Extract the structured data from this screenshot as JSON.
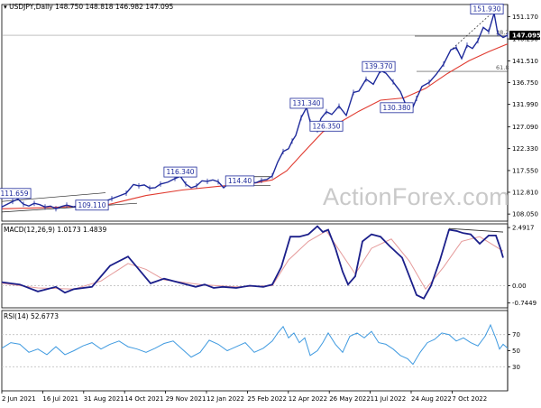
{
  "price_header": {
    "symbol": "USDJPY,Daily",
    "ohlc": "148.750 148.818 146.982 147.095",
    "dropdown_icon": "triangle-down-icon"
  },
  "macd_header": {
    "label": "MACD(12,26,9) 1.0173 1.4839"
  },
  "rsi_header": {
    "label": "RSI(14) 52.6773"
  },
  "watermark": "ActionForex.com",
  "colors": {
    "price_line": "#1e2a9b",
    "ma_line": "#e03a2f",
    "macd_line": "#1b1f8a",
    "signal_line": "#e59a9a",
    "rsi_line": "#3f9ae0",
    "label_border": "#1e2a9b",
    "current_price_bg": "#000000"
  },
  "chart_data": [
    {
      "type": "line",
      "panel": "price",
      "title": "USDJPY,Daily",
      "x": [
        "2 Jun 2021",
        "16 Jul 2021",
        "31 Aug 2021",
        "14 Oct 2021",
        "29 Nov 2021",
        "12 Jan 2022",
        "25 Feb 2022",
        "12 Apr 2022",
        "26 May 2022",
        "11 Jul 2022",
        "24 Aug 2022",
        "7 Oct 2022"
      ],
      "ylim": [
        106.5,
        153.8
      ],
      "yticks": [
        "151.170",
        "146.290",
        "141.510",
        "136.750",
        "131.990",
        "127.090",
        "122.330",
        "117.550",
        "112.810",
        "108.050"
      ],
      "series": [
        {
          "key": "price",
          "points": [
            [
              0,
              109.6
            ],
            [
              6,
              110.2
            ],
            [
              12,
              110.8
            ],
            [
              18,
              111.3
            ],
            [
              24,
              110.2
            ],
            [
              30,
              109.8
            ],
            [
              36,
              110.4
            ],
            [
              42,
              110.1
            ],
            [
              48,
              109.6
            ],
            [
              54,
              109.8
            ],
            [
              60,
              109.2
            ],
            [
              66,
              109.7
            ],
            [
              72,
              110.0
            ],
            [
              80,
              109.6
            ],
            [
              88,
              110.3
            ],
            [
              96,
              109.8
            ],
            [
              106,
              110.2
            ],
            [
              114,
              110.8
            ],
            [
              122,
              111.4
            ],
            [
              130,
              112.0
            ],
            [
              138,
              112.6
            ],
            [
              146,
              114.5
            ],
            [
              152,
              114.2
            ],
            [
              158,
              114.4
            ],
            [
              164,
              113.7
            ],
            [
              170,
              113.8
            ],
            [
              176,
              114.6
            ],
            [
              184,
              115.0
            ],
            [
              192,
              115.8
            ],
            [
              198,
              116.3
            ],
            [
              204,
              114.6
            ],
            [
              210,
              113.8
            ],
            [
              216,
              114.2
            ],
            [
              222,
              115.3
            ],
            [
              228,
              115.2
            ],
            [
              234,
              115.5
            ],
            [
              240,
              115.1
            ],
            [
              246,
              113.8
            ],
            [
              252,
              114.8
            ],
            [
              258,
              115.6
            ],
            [
              264,
              114.9
            ],
            [
              270,
              115.2
            ],
            [
              276,
              115.0
            ],
            [
              282,
              114.9
            ],
            [
              288,
              115.4
            ],
            [
              294,
              115.6
            ],
            [
              300,
              116.4
            ],
            [
              306,
              119.4
            ],
            [
              312,
              121.7
            ],
            [
              318,
              122.3
            ],
            [
              322,
              124.0
            ],
            [
              326,
              125.2
            ],
            [
              332,
              129.1
            ],
            [
              338,
              131.3
            ],
            [
              342,
              128.2
            ],
            [
              346,
              127.6
            ],
            [
              350,
              126.4
            ],
            [
              354,
              128.9
            ],
            [
              360,
              130.4
            ],
            [
              366,
              129.8
            ],
            [
              374,
              131.6
            ],
            [
              382,
              129.6
            ],
            [
              390,
              134.6
            ],
            [
              396,
              134.9
            ],
            [
              404,
              137.5
            ],
            [
              412,
              136.4
            ],
            [
              420,
              139.4
            ],
            [
              426,
              138.8
            ],
            [
              434,
              136.9
            ],
            [
              442,
              134.8
            ],
            [
              450,
              131.0
            ],
            [
              454,
              130.4
            ],
            [
              460,
              133.3
            ],
            [
              466,
              135.9
            ],
            [
              474,
              136.8
            ],
            [
              482,
              138.6
            ],
            [
              490,
              140.8
            ],
            [
              498,
              143.9
            ],
            [
              504,
              144.4
            ],
            [
              510,
              142.0
            ],
            [
              516,
              144.9
            ],
            [
              522,
              144.2
            ],
            [
              528,
              145.9
            ],
            [
              534,
              148.8
            ],
            [
              540,
              147.9
            ],
            [
              546,
              151.9
            ],
            [
              550,
              147.5
            ],
            [
              556,
              146.6
            ],
            [
              561,
              147.1
            ]
          ]
        },
        {
          "key": "ma",
          "points": [
            [
              0,
              109.2
            ],
            [
              40,
              109.4
            ],
            [
              80,
              109.7
            ],
            [
              120,
              110.2
            ],
            [
              160,
              112.1
            ],
            [
              200,
              113.3
            ],
            [
              240,
              114.1
            ],
            [
              280,
              114.8
            ],
            [
              300,
              115.5
            ],
            [
              316,
              117.5
            ],
            [
              336,
              121.8
            ],
            [
              356,
              126.0
            ],
            [
              376,
              128.2
            ],
            [
              396,
              130.5
            ],
            [
              420,
              132.9
            ],
            [
              446,
              133.4
            ],
            [
              470,
              135.5
            ],
            [
              494,
              138.7
            ],
            [
              518,
              141.5
            ],
            [
              540,
              143.5
            ],
            [
              561,
              145.2
            ]
          ]
        }
      ],
      "annotations": [
        {
          "label": "151.930",
          "value": 151.93
        },
        {
          "label": "139.370",
          "value": 139.37
        },
        {
          "label": "131.340",
          "value": 131.34
        },
        {
          "label": "126.350",
          "value": 126.35
        },
        {
          "label": "130.380",
          "value": 130.38
        },
        {
          "label": "116.340",
          "value": 116.34
        },
        {
          "label": "114.40",
          "value": 114.4
        },
        {
          "label": "111.659",
          "value": 111.659
        },
        {
          "label": "109.110",
          "value": 109.11
        }
      ],
      "fib_labels": [
        "38.2",
        "61.8"
      ],
      "current_price": "147.095"
    },
    {
      "type": "line",
      "panel": "macd",
      "title": "MACD(12,26,9) 1.0173 1.4839",
      "ylim": [
        -0.95,
        2.65
      ],
      "yticks": [
        "2.4917",
        "0.00",
        "-0.7449"
      ],
      "series": [
        {
          "key": "macd",
          "points": [
            [
              0,
              0.15
            ],
            [
              20,
              0.05
            ],
            [
              40,
              -0.25
            ],
            [
              60,
              -0.05
            ],
            [
              70,
              -0.3
            ],
            [
              80,
              -0.15
            ],
            [
              100,
              -0.05
            ],
            [
              120,
              0.85
            ],
            [
              140,
              1.25
            ],
            [
              152,
              0.7
            ],
            [
              165,
              0.1
            ],
            [
              180,
              0.3
            ],
            [
              200,
              0.1
            ],
            [
              215,
              -0.05
            ],
            [
              225,
              0.05
            ],
            [
              235,
              -0.1
            ],
            [
              245,
              -0.05
            ],
            [
              260,
              -0.1
            ],
            [
              275,
              0.0
            ],
            [
              290,
              -0.05
            ],
            [
              300,
              0.05
            ],
            [
              310,
              0.8
            ],
            [
              320,
              2.1
            ],
            [
              330,
              2.1
            ],
            [
              340,
              2.2
            ],
            [
              350,
              2.55
            ],
            [
              356,
              2.3
            ],
            [
              362,
              2.4
            ],
            [
              370,
              1.6
            ],
            [
              378,
              0.6
            ],
            [
              384,
              0.05
            ],
            [
              392,
              0.4
            ],
            [
              400,
              1.9
            ],
            [
              410,
              2.2
            ],
            [
              420,
              2.1
            ],
            [
              430,
              1.7
            ],
            [
              444,
              1.2
            ],
            [
              452,
              0.4
            ],
            [
              460,
              -0.4
            ],
            [
              468,
              -0.55
            ],
            [
              476,
              0.0
            ],
            [
              486,
              1.1
            ],
            [
              496,
              2.4
            ],
            [
              504,
              2.35
            ],
            [
              512,
              2.25
            ],
            [
              520,
              2.2
            ],
            [
              530,
              1.8
            ],
            [
              540,
              2.15
            ],
            [
              548,
              2.15
            ],
            [
              553,
              1.6
            ],
            [
              556,
              1.2
            ]
          ]
        },
        {
          "key": "signal",
          "points": [
            [
              0,
              0.1
            ],
            [
              40,
              -0.1
            ],
            [
              80,
              -0.15
            ],
            [
              110,
              0.2
            ],
            [
              140,
              0.95
            ],
            [
              160,
              0.7
            ],
            [
              180,
              0.25
            ],
            [
              220,
              0.05
            ],
            [
              260,
              -0.05
            ],
            [
              300,
              0.0
            ],
            [
              318,
              1.1
            ],
            [
              340,
              1.9
            ],
            [
              360,
              2.35
            ],
            [
              378,
              1.3
            ],
            [
              392,
              0.5
            ],
            [
              410,
              1.6
            ],
            [
              432,
              2.0
            ],
            [
              452,
              1.05
            ],
            [
              470,
              -0.15
            ],
            [
              490,
              0.8
            ],
            [
              510,
              1.9
            ],
            [
              530,
              2.1
            ],
            [
              556,
              1.48
            ]
          ]
        }
      ]
    },
    {
      "type": "line",
      "panel": "rsi",
      "title": "RSI(14) 52.6773",
      "ylim": [
        0,
        100
      ],
      "yticks": [
        "70",
        "50",
        "30"
      ],
      "series": [
        {
          "key": "rsi",
          "points": [
            [
              0,
              53
            ],
            [
              10,
              60
            ],
            [
              20,
              58
            ],
            [
              30,
              48
            ],
            [
              40,
              52
            ],
            [
              50,
              45
            ],
            [
              60,
              55
            ],
            [
              70,
              45
            ],
            [
              80,
              50
            ],
            [
              90,
              56
            ],
            [
              100,
              60
            ],
            [
              110,
              52
            ],
            [
              120,
              58
            ],
            [
              130,
              62
            ],
            [
              140,
              55
            ],
            [
              150,
              52
            ],
            [
              160,
              48
            ],
            [
              170,
              53
            ],
            [
              180,
              59
            ],
            [
              190,
              62
            ],
            [
              200,
              52
            ],
            [
              210,
              42
            ],
            [
              220,
              48
            ],
            [
              230,
              63
            ],
            [
              240,
              58
            ],
            [
              250,
              50
            ],
            [
              260,
              55
            ],
            [
              270,
              60
            ],
            [
              280,
              48
            ],
            [
              290,
              53
            ],
            [
              300,
              62
            ],
            [
              306,
              72
            ],
            [
              312,
              80
            ],
            [
              318,
              66
            ],
            [
              324,
              72
            ],
            [
              330,
              60
            ],
            [
              336,
              66
            ],
            [
              342,
              44
            ],
            [
              350,
              50
            ],
            [
              356,
              60
            ],
            [
              362,
              72
            ],
            [
              370,
              58
            ],
            [
              378,
              48
            ],
            [
              386,
              68
            ],
            [
              394,
              72
            ],
            [
              402,
              66
            ],
            [
              410,
              74
            ],
            [
              418,
              60
            ],
            [
              426,
              58
            ],
            [
              434,
              52
            ],
            [
              442,
              44
            ],
            [
              450,
              40
            ],
            [
              456,
              33
            ],
            [
              464,
              48
            ],
            [
              472,
              60
            ],
            [
              480,
              64
            ],
            [
              488,
              72
            ],
            [
              496,
              70
            ],
            [
              504,
              62
            ],
            [
              512,
              66
            ],
            [
              520,
              60
            ],
            [
              528,
              56
            ],
            [
              536,
              68
            ],
            [
              542,
              82
            ],
            [
              548,
              65
            ],
            [
              552,
              52
            ],
            [
              556,
              58
            ],
            [
              561,
              53
            ]
          ]
        }
      ]
    }
  ]
}
